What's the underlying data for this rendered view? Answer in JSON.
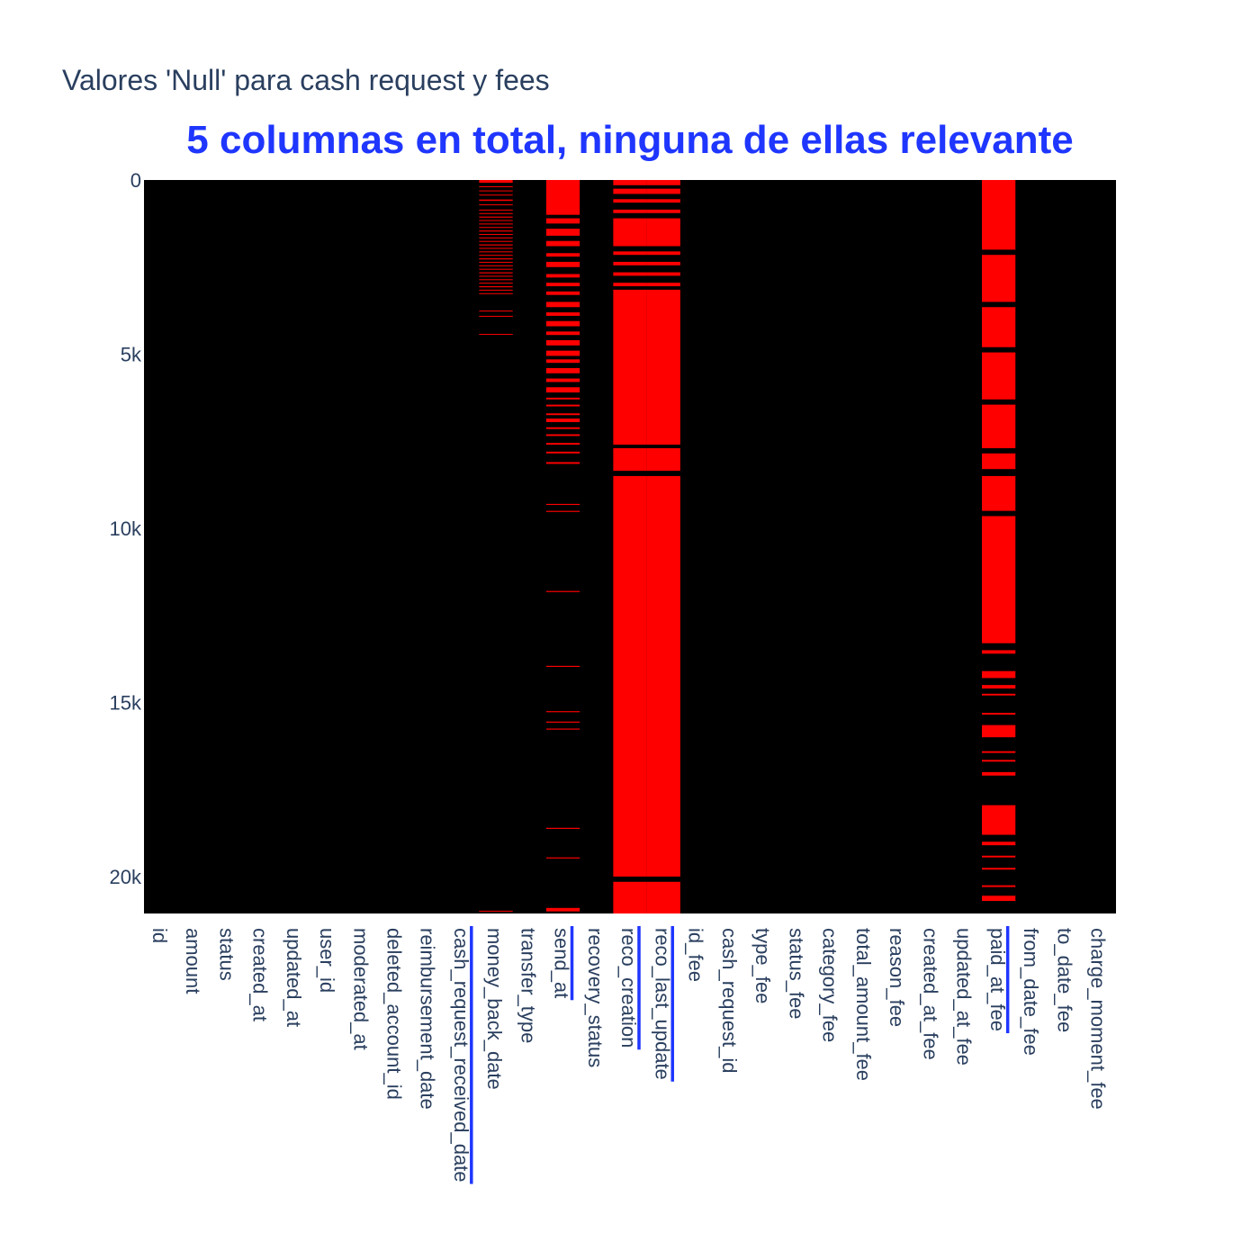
{
  "chart_data": {
    "type": "heatmap",
    "title": "Valores 'Null' para cash request y fees",
    "subtitle": "5 columnas en total, ninguna de ellas relevante",
    "colors": {
      "background": "#ffffff",
      "present": "#000000",
      "missing": "#ff0000",
      "title": "#2a3f5f",
      "subtitle": "#1f36ff",
      "highlight": "#1f36ff",
      "tick": "#2a3f5f"
    },
    "ylim": [
      0,
      21060
    ],
    "y_ticks": [
      {
        "value": 0,
        "label": "0"
      },
      {
        "value": 5000,
        "label": "5k"
      },
      {
        "value": 10000,
        "label": "10k"
      },
      {
        "value": 15000,
        "label": "15k"
      },
      {
        "value": 20000,
        "label": "20k"
      }
    ],
    "columns": [
      {
        "name": "id",
        "highlighted": false,
        "null_rows": []
      },
      {
        "name": "amount",
        "highlighted": false,
        "null_rows": []
      },
      {
        "name": "status",
        "highlighted": false,
        "null_rows": []
      },
      {
        "name": "created_at",
        "highlighted": false,
        "null_rows": []
      },
      {
        "name": "updated_at",
        "highlighted": false,
        "null_rows": []
      },
      {
        "name": "user_id",
        "highlighted": false,
        "null_rows": []
      },
      {
        "name": "moderated_at",
        "highlighted": false,
        "null_rows": []
      },
      {
        "name": "deleted_account_id",
        "highlighted": false,
        "null_rows": []
      },
      {
        "name": "reimbursement_date",
        "highlighted": false,
        "null_rows": []
      },
      {
        "name": "cash_request_received_date",
        "highlighted": true,
        "null_rows": []
      },
      {
        "name": "money_back_date",
        "highlighted": false,
        "null_rows": [
          [
            0,
            80
          ],
          [
            180,
            200
          ],
          [
            300,
            320
          ],
          [
            420,
            440
          ],
          [
            560,
            600
          ],
          [
            700,
            720
          ],
          [
            850,
            870
          ],
          [
            950,
            970
          ],
          [
            1050,
            1080
          ],
          [
            1150,
            1170
          ],
          [
            1250,
            1270
          ],
          [
            1350,
            1370
          ],
          [
            1450,
            1480
          ],
          [
            1550,
            1570
          ],
          [
            1650,
            1670
          ],
          [
            1750,
            1770
          ],
          [
            1850,
            1880
          ],
          [
            1950,
            1970
          ],
          [
            2050,
            2070
          ],
          [
            2150,
            2170
          ],
          [
            2250,
            2280
          ],
          [
            2350,
            2370
          ],
          [
            2450,
            2470
          ],
          [
            2550,
            2570
          ],
          [
            2650,
            2680
          ],
          [
            2750,
            2770
          ],
          [
            2850,
            2870
          ],
          [
            2950,
            2970
          ],
          [
            3050,
            3080
          ],
          [
            3150,
            3170
          ],
          [
            3250,
            3270
          ],
          [
            3750,
            3770
          ],
          [
            3900,
            3920
          ],
          [
            4420,
            4440
          ],
          [
            20980,
            21000
          ]
        ]
      },
      {
        "name": "transfer_type",
        "highlighted": false,
        "null_rows": []
      },
      {
        "name": "send_at",
        "highlighted": true,
        "null_rows": [
          [
            0,
            1000
          ],
          [
            1100,
            1250
          ],
          [
            1400,
            1600
          ],
          [
            1750,
            1900
          ],
          [
            2100,
            2200
          ],
          [
            2350,
            2500
          ],
          [
            2700,
            2800
          ],
          [
            2950,
            3050
          ],
          [
            3200,
            3300
          ],
          [
            3500,
            3650
          ],
          [
            3800,
            3900
          ],
          [
            4050,
            4200
          ],
          [
            4350,
            4450
          ],
          [
            4600,
            4750
          ],
          [
            4900,
            5050
          ],
          [
            5150,
            5250
          ],
          [
            5400,
            5550
          ],
          [
            5700,
            5800
          ],
          [
            5950,
            6100
          ],
          [
            6250,
            6300
          ],
          [
            6450,
            6500
          ],
          [
            6700,
            6750
          ],
          [
            6850,
            6950
          ],
          [
            7100,
            7150
          ],
          [
            7300,
            7350
          ],
          [
            7550,
            7600
          ],
          [
            7800,
            7850
          ],
          [
            8100,
            8150
          ],
          [
            9300,
            9330
          ],
          [
            9500,
            9530
          ],
          [
            11800,
            11830
          ],
          [
            13950,
            13980
          ],
          [
            15250,
            15280
          ],
          [
            15550,
            15580
          ],
          [
            15750,
            15780
          ],
          [
            18600,
            18630
          ],
          [
            19450,
            19480
          ],
          [
            20900,
            21000
          ]
        ]
      },
      {
        "name": "recovery_status",
        "highlighted": false,
        "null_rows": []
      },
      {
        "name": "reco_creation",
        "highlighted": true,
        "null_rows": [
          [
            0,
            150
          ],
          [
            250,
            400
          ],
          [
            550,
            650
          ],
          [
            850,
            950
          ],
          [
            1100,
            1900
          ],
          [
            2050,
            2150
          ],
          [
            2350,
            2450
          ],
          [
            2650,
            2750
          ],
          [
            2950,
            3050
          ],
          [
            3150,
            7600
          ],
          [
            7700,
            8350
          ],
          [
            8500,
            20000
          ],
          [
            20150,
            21060
          ]
        ]
      },
      {
        "name": "reco_last_update",
        "highlighted": true,
        "null_rows": [
          [
            0,
            150
          ],
          [
            250,
            400
          ],
          [
            550,
            650
          ],
          [
            850,
            950
          ],
          [
            1100,
            1900
          ],
          [
            2050,
            2150
          ],
          [
            2350,
            2450
          ],
          [
            2650,
            2750
          ],
          [
            2950,
            3050
          ],
          [
            3150,
            7600
          ],
          [
            7700,
            8350
          ],
          [
            8500,
            20000
          ],
          [
            20150,
            21060
          ]
        ]
      },
      {
        "name": "id_fee",
        "highlighted": false,
        "null_rows": []
      },
      {
        "name": "cash_request_id",
        "highlighted": false,
        "null_rows": []
      },
      {
        "name": "type_fee",
        "highlighted": false,
        "null_rows": []
      },
      {
        "name": "status_fee",
        "highlighted": false,
        "null_rows": []
      },
      {
        "name": "category_fee",
        "highlighted": false,
        "null_rows": []
      },
      {
        "name": "total_amount_fee",
        "highlighted": false,
        "null_rows": []
      },
      {
        "name": "reason_fee",
        "highlighted": false,
        "null_rows": []
      },
      {
        "name": "created_at_fee",
        "highlighted": false,
        "null_rows": []
      },
      {
        "name": "updated_at_fee",
        "highlighted": false,
        "null_rows": []
      },
      {
        "name": "paid_at_fee",
        "highlighted": true,
        "null_rows": [
          [
            0,
            2000
          ],
          [
            2150,
            3500
          ],
          [
            3650,
            4800
          ],
          [
            4950,
            6300
          ],
          [
            6450,
            7700
          ],
          [
            7850,
            8300
          ],
          [
            8500,
            9500
          ],
          [
            9650,
            13300
          ],
          [
            13500,
            13600
          ],
          [
            14100,
            14300
          ],
          [
            14500,
            14600
          ],
          [
            14750,
            14800
          ],
          [
            15300,
            15350
          ],
          [
            15650,
            16000
          ],
          [
            16400,
            16450
          ],
          [
            16650,
            16700
          ],
          [
            17000,
            17100
          ],
          [
            17950,
            18800
          ],
          [
            19000,
            19100
          ],
          [
            19400,
            19450
          ],
          [
            19750,
            19800
          ],
          [
            20250,
            20300
          ],
          [
            20550,
            20700
          ]
        ]
      },
      {
        "name": "from_date_fee",
        "highlighted": false,
        "null_rows": []
      },
      {
        "name": "to_date_fee",
        "highlighted": false,
        "null_rows": []
      },
      {
        "name": "charge_moment_fee",
        "highlighted": false,
        "null_rows": []
      }
    ]
  }
}
